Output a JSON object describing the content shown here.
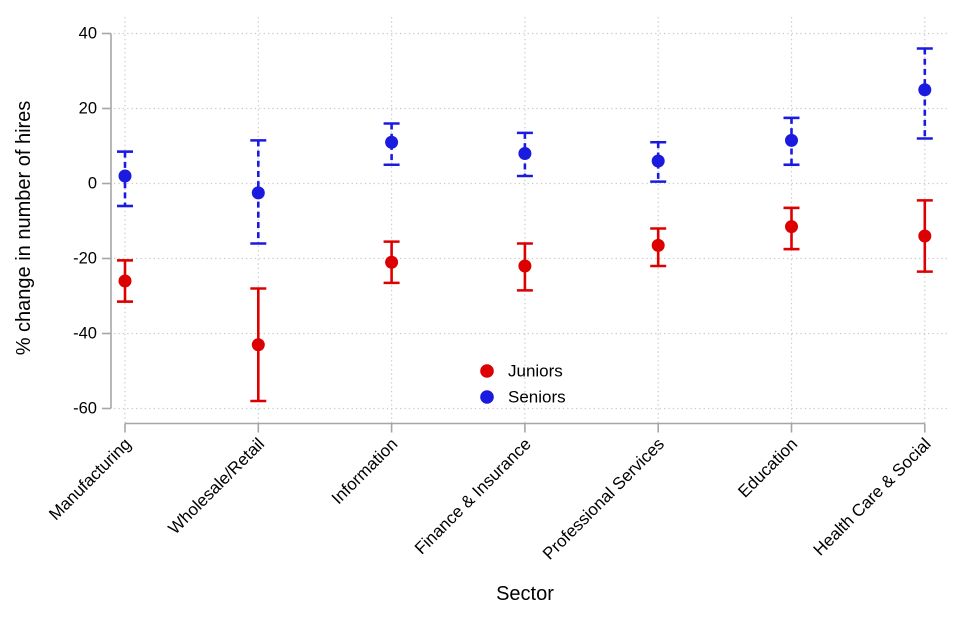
{
  "chart_data": {
    "type": "scatter",
    "title": "",
    "xlabel": "Sector",
    "ylabel": "% change in number of hires",
    "categories": [
      "Manufacturing",
      "Wholesale/Retail",
      "Information",
      "Finance & Insurance",
      "Professional Services",
      "Education",
      "Health Care & Social"
    ],
    "yticks": [
      40,
      20,
      0,
      -20,
      -40,
      -60
    ],
    "ylim": [
      -65,
      45
    ],
    "grid": true,
    "grid_style": "dotted",
    "legend_position": "inside lower-center",
    "series": [
      {
        "name": "Juniors",
        "color": "#dd0000",
        "marker": "circle",
        "errorbar_style": "solid",
        "values": [
          -26,
          -43,
          -21,
          -22,
          -16.5,
          -11.5,
          -14
        ],
        "ci_low": [
          -31.5,
          -58,
          -26.5,
          -28.5,
          -22,
          -17.5,
          -23.5
        ],
        "ci_high": [
          -20.5,
          -28,
          -15.5,
          -16,
          -12,
          -6.5,
          -4.5
        ]
      },
      {
        "name": "Seniors",
        "color": "#1b1be0",
        "marker": "circle",
        "errorbar_style": "dashed",
        "values": [
          2,
          -2.5,
          11,
          8,
          6,
          11.5,
          25
        ],
        "ci_low": [
          -6,
          -16,
          5,
          2,
          0.5,
          5,
          12
        ],
        "ci_high": [
          8.5,
          11.5,
          16,
          13.5,
          11,
          17.5,
          36
        ]
      }
    ],
    "style": {
      "axis_color": "#a6a6a6",
      "grid_color": "#c9c9c9",
      "text_color": "#000000",
      "background": "#ffffff"
    }
  }
}
